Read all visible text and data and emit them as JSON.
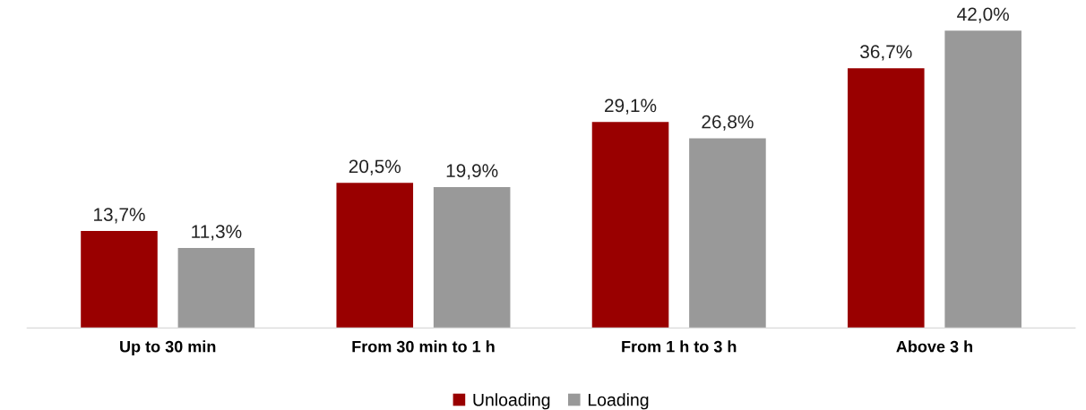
{
  "chart_data": {
    "type": "bar",
    "categories": [
      "Up to 30 min",
      "From 30 min to 1 h",
      "From 1 h to 3 h",
      "Above 3 h"
    ],
    "series": [
      {
        "name": "Unloading",
        "color": "#990000",
        "values": [
          13.7,
          20.5,
          29.1,
          36.7
        ],
        "value_labels": [
          "13,7%",
          "20,5%",
          "29,1%",
          "36,7%"
        ]
      },
      {
        "name": "Loading",
        "color": "#999999",
        "values": [
          11.3,
          19.9,
          26.8,
          42.0
        ],
        "value_labels": [
          "11,3%",
          "19,9%",
          "26,8%",
          "42,0%"
        ]
      }
    ],
    "legend": "bottom",
    "grid": false
  }
}
